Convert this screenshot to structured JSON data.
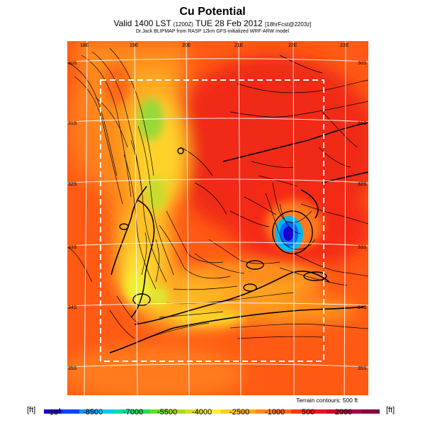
{
  "header": {
    "title": "Cu Potential",
    "subtitle_main": "Valid 1400 LST",
    "subtitle_paren": "(1200Z)",
    "subtitle_date": "TUE 28 Feb 2012",
    "subtitle_run": "[18hrFcst@2203z]",
    "credit": "Dr.Jack BLIPMAP from RASP 12km GFS-initialized WRF-ARW model"
  },
  "map": {
    "lon_labels": [
      "18E",
      "19E",
      "20E",
      "21E",
      "22E",
      "23E"
    ],
    "lat_labels": [
      "30S",
      "31S",
      "32S",
      "33S",
      "34S",
      "35S"
    ],
    "terrain_note": "Terrain contours: 500 ft"
  },
  "colorbar": {
    "unit_left": "[ft]",
    "unit_right": "[ft]",
    "first_tick_base": "-10",
    "first_tick_exp": "4",
    "ticks": [
      "-8500",
      "-7000",
      "-5500",
      "-4000",
      "-2500",
      "-1000",
      "500",
      "2000"
    ],
    "colors": [
      "#1a00d0",
      "#0044ff",
      "#0099ff",
      "#00ccee",
      "#00e0a0",
      "#22dd55",
      "#66dd22",
      "#aadd22",
      "#dddd22",
      "#ffee33",
      "#ffcc22",
      "#ffaa11",
      "#ff8811",
      "#ff6611",
      "#ff3311",
      "#ee1122",
      "#cc0033",
      "#aa0044",
      "#880044"
    ]
  }
}
